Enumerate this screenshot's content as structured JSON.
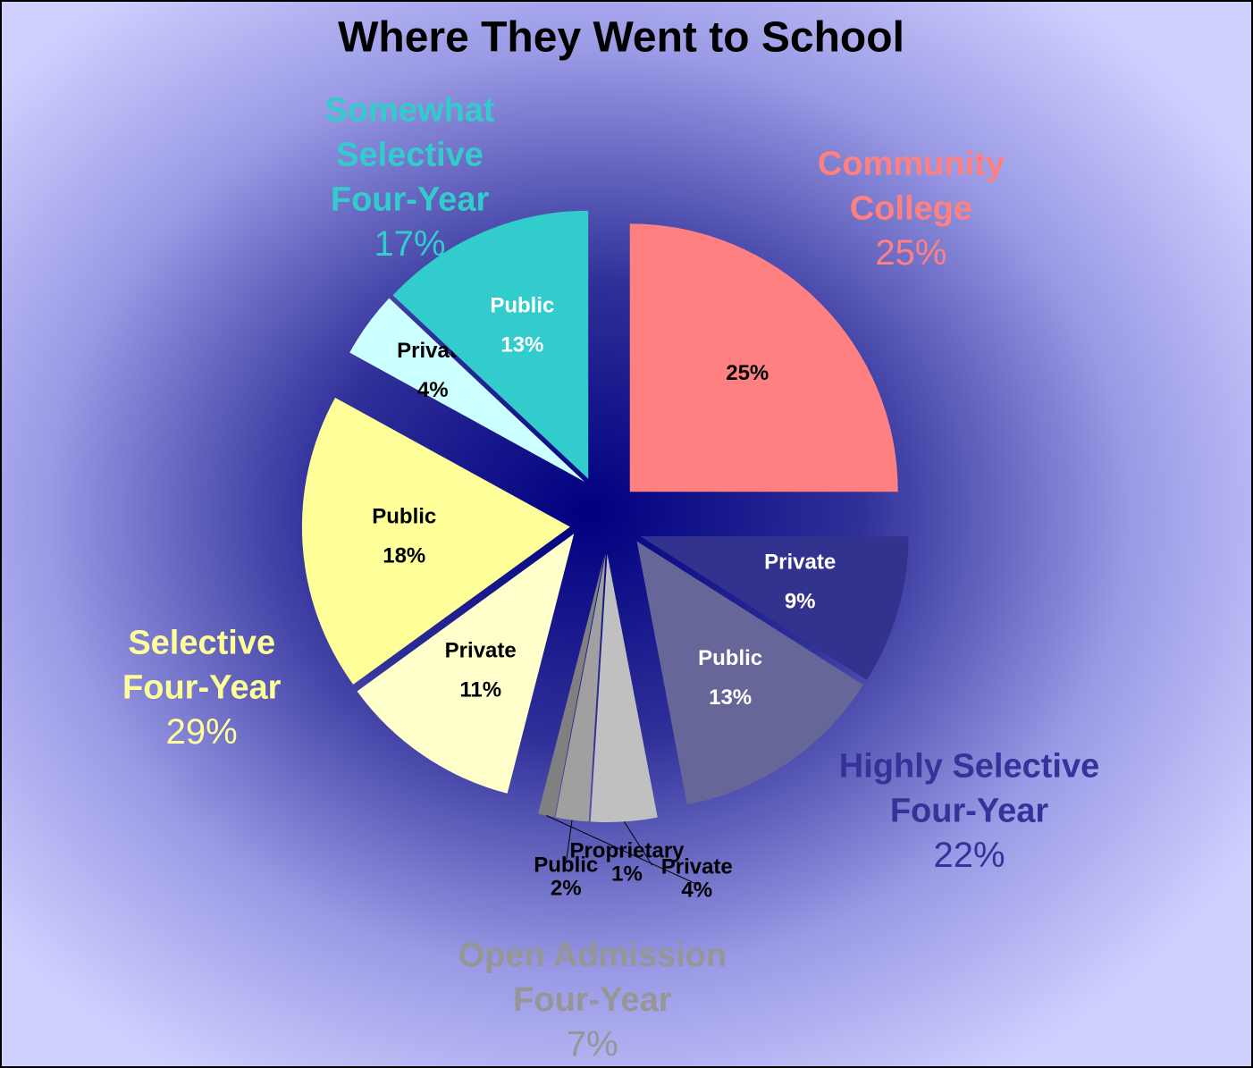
{
  "chart_data": {
    "type": "pie",
    "title": "Where They Went to School",
    "groups": [
      {
        "name_lines": [
          "Community",
          "College"
        ],
        "value": 25,
        "value_label": "25%",
        "color": "#ff8080",
        "slices": [
          {
            "value": 25,
            "value_label": "25%",
            "color": "#ff8080",
            "label_color": "#000000"
          }
        ]
      },
      {
        "name_lines": [
          "Highly Selective",
          "Four-Year"
        ],
        "value": 22,
        "value_label": "22%",
        "color": "#333399",
        "slices": [
          {
            "name": "Private",
            "value": 9,
            "value_label": "9%",
            "color": "#33338f",
            "label_color": "#ffffff"
          },
          {
            "name": "Public",
            "value": 13,
            "value_label": "13%",
            "color": "#666699",
            "label_color": "#ffffff"
          }
        ]
      },
      {
        "name_lines": [
          "Open Admission",
          "Four-Year"
        ],
        "value": 7,
        "value_label": "7%",
        "color": "#969696",
        "slices": [
          {
            "name": "Private",
            "value": 4,
            "value_label": "4%",
            "color": "#c0c0c0",
            "label_color": "#000000"
          },
          {
            "name": "Public",
            "value": 2,
            "value_label": "2%",
            "color": "#a0a0a0",
            "label_color": "#000000"
          },
          {
            "name": "Proprietary",
            "value": 1,
            "value_label": "1%",
            "color": "#808080",
            "label_color": "#000000"
          }
        ]
      },
      {
        "name_lines": [
          "Selective",
          "Four-Year"
        ],
        "value": 29,
        "value_label": "29%",
        "color": "#ffff99",
        "slices": [
          {
            "name": "Private",
            "value": 11,
            "value_label": "11%",
            "color": "#ffffcc",
            "label_color": "#000000"
          },
          {
            "name": "Public",
            "value": 18,
            "value_label": "18%",
            "color": "#ffff99",
            "label_color": "#000000"
          }
        ]
      },
      {
        "name_lines": [
          "Somewhat",
          "Selective",
          "Four-Year"
        ],
        "value": 17,
        "value_label": "17%",
        "color": "#33cccc",
        "slices": [
          {
            "name": "Private",
            "value": 4,
            "value_label": "4%",
            "color": "#ccffff",
            "label_color": "#000000"
          },
          {
            "name": "Public",
            "value": 13,
            "value_label": "13%",
            "color": "#33cccc",
            "label_color": "#ffffff"
          }
        ]
      }
    ]
  }
}
